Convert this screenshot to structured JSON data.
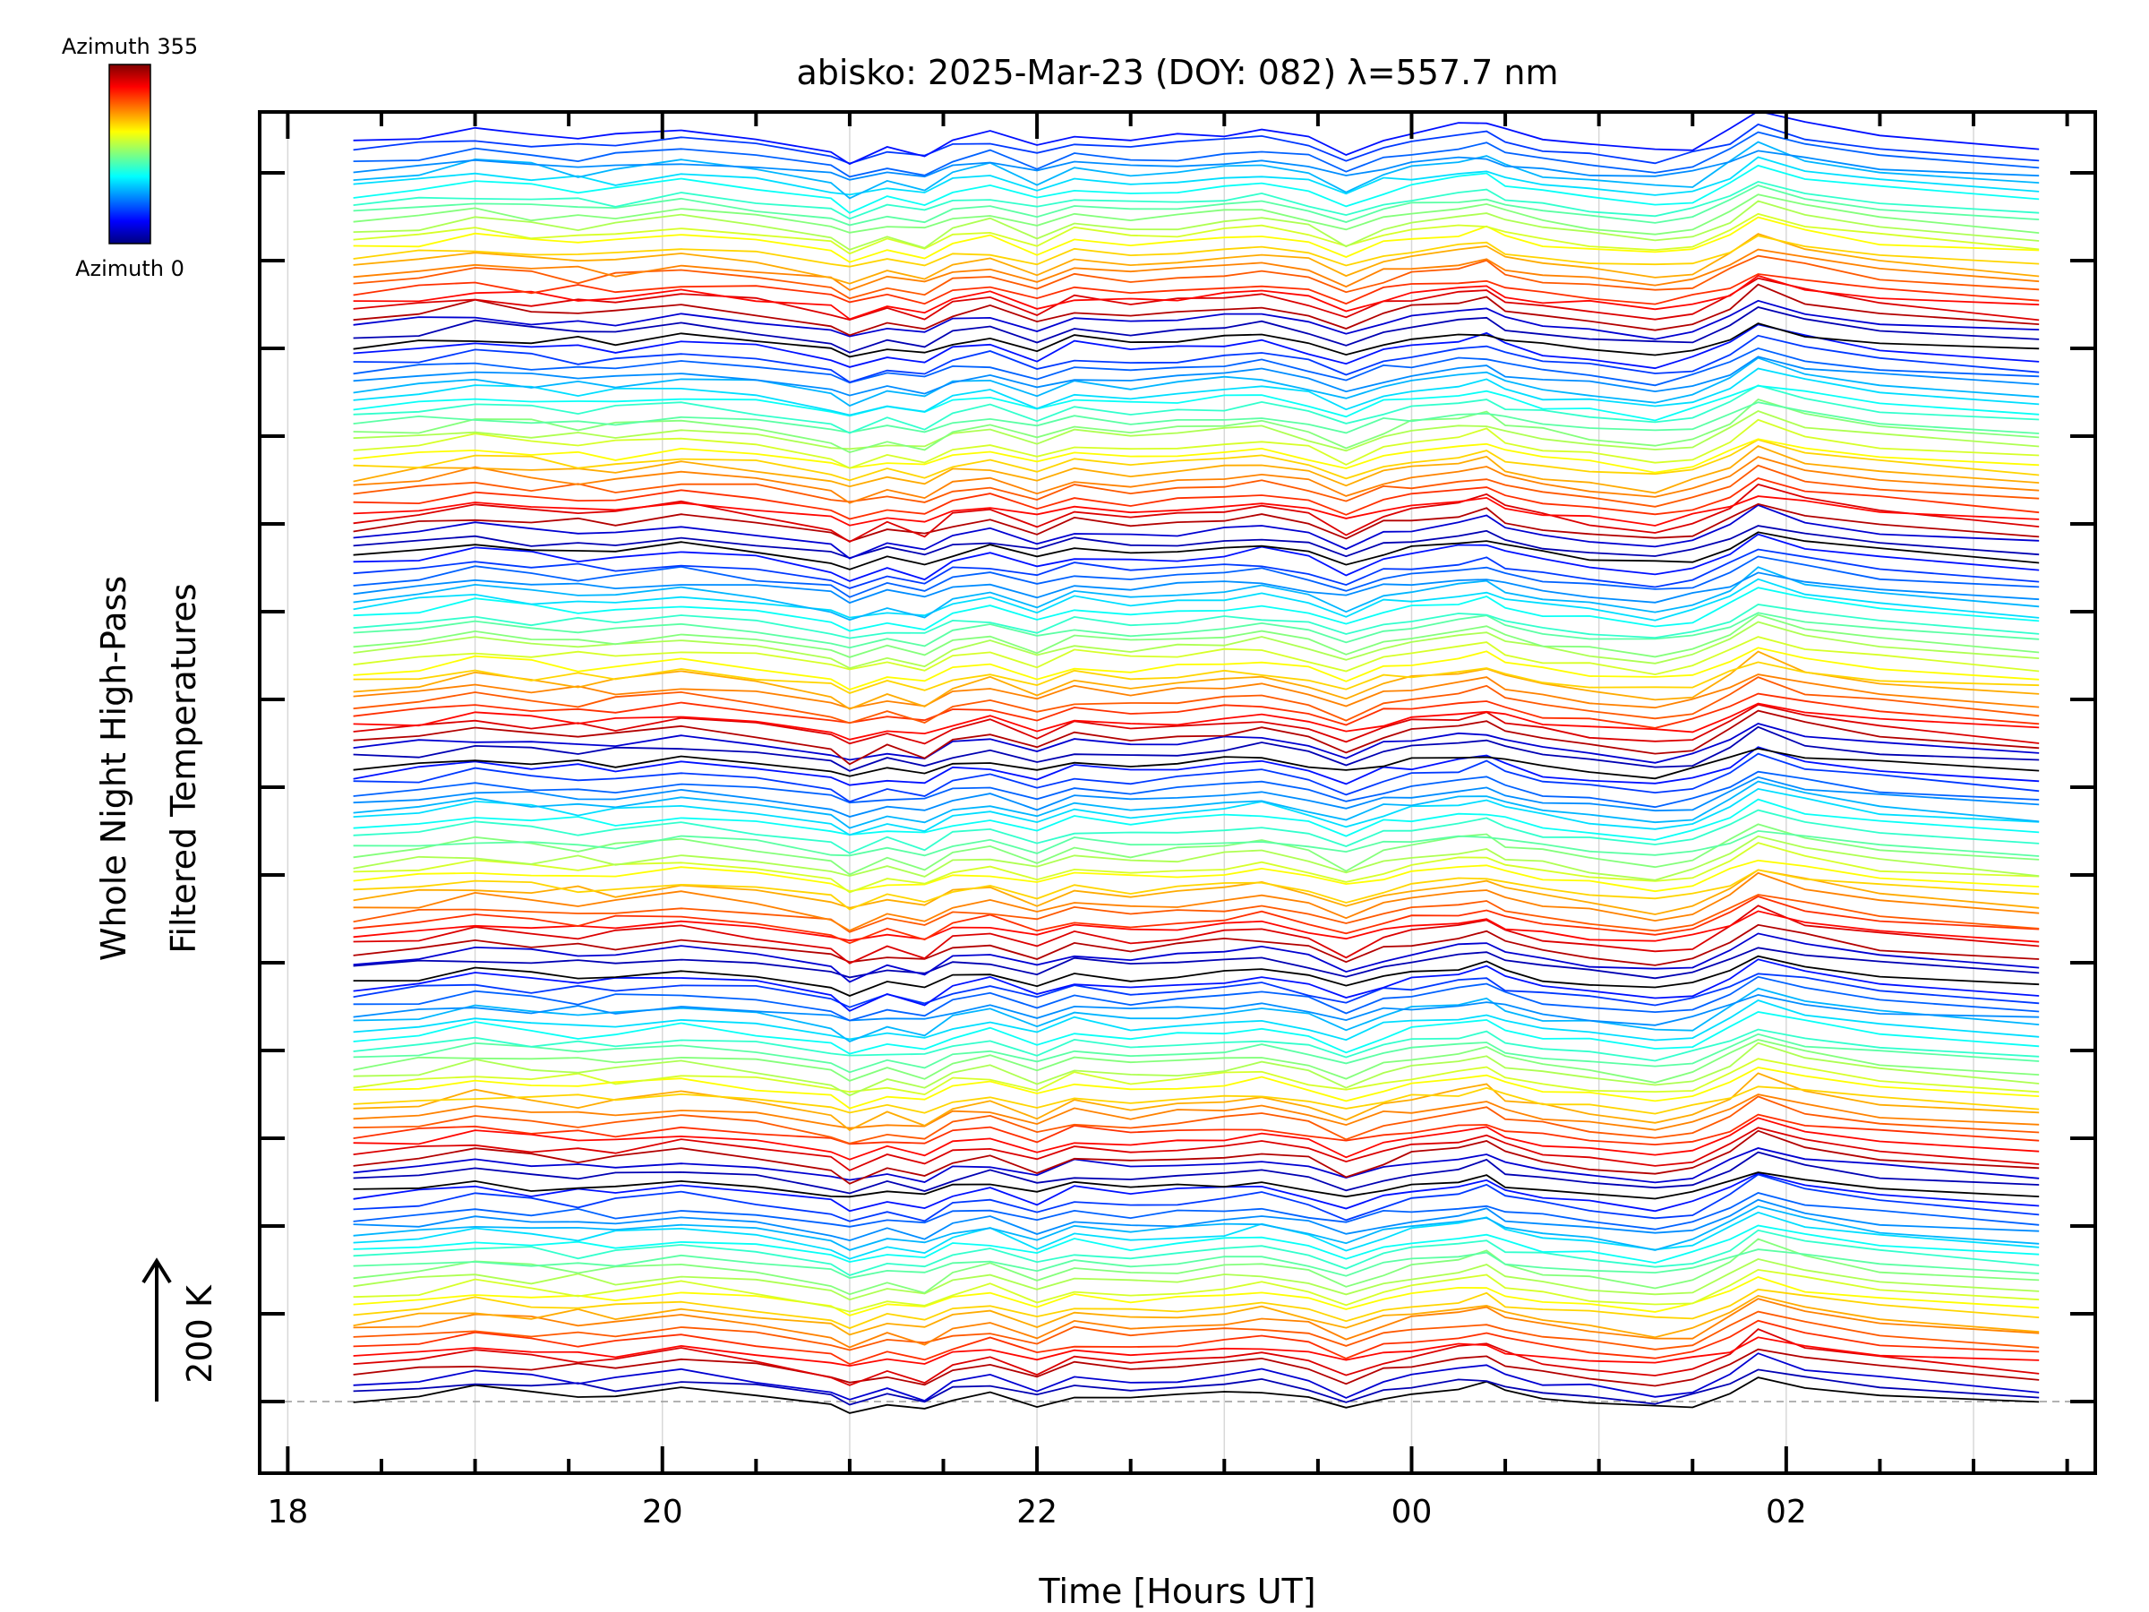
{
  "title": "abisko: 2025-Mar-23 (DOY: 082) λ=557.7 nm",
  "colorbar": {
    "top_label": "Azimuth 355",
    "bottom_label": "Azimuth 0",
    "colormap": "jet"
  },
  "scale_annotation": "200 K",
  "chart_data": {
    "type": "line",
    "title": "abisko: 2025-Mar-23 (DOY: 082) λ=557.7 nm",
    "xlabel": "Time [Hours UT]",
    "ylabel_lines": [
      "Whole Night High-Pass",
      "Filtered Temperatures"
    ],
    "x_tick_labels": [
      "18",
      "20",
      "22",
      "00",
      "02"
    ],
    "x_tick_hours": [
      18,
      20,
      22,
      24,
      26
    ],
    "xlim_hours": [
      17.85,
      27.65
    ],
    "x_data_range_hours": [
      18.35,
      27.35
    ],
    "y_ticks_count": 15,
    "grid": "vertical",
    "color_encoding": "azimuth (0 to 355)",
    "series_groups": 6,
    "series_per_group": 24,
    "baseline": "dashed gray reference line at lowest tick",
    "group_profiles": [
      {
        "hours": [
          18.35,
          18.7,
          19.0,
          19.3,
          19.55,
          19.75,
          20.1,
          20.5,
          20.9,
          21.0,
          21.2,
          21.4,
          21.55,
          21.75,
          22.0,
          22.2,
          22.5,
          22.75,
          23.0,
          23.2,
          23.45,
          23.65,
          23.85,
          24.0,
          24.25,
          24.4,
          24.5,
          24.7,
          24.95,
          25.3,
          25.5,
          25.7,
          25.85,
          26.1,
          26.5,
          27.35
        ],
        "values": [
          0.0,
          0.25,
          0.9,
          0.6,
          0.2,
          0.5,
          0.8,
          0.3,
          -0.4,
          -1.0,
          -0.2,
          -0.7,
          0.2,
          0.6,
          -0.3,
          0.4,
          0.1,
          0.3,
          0.5,
          0.8,
          0.3,
          -0.6,
          0.2,
          0.6,
          0.9,
          1.2,
          0.6,
          0.2,
          -0.1,
          -0.5,
          -0.3,
          0.7,
          1.8,
          1.0,
          0.4,
          -0.3
        ]
      },
      {
        "hours": [
          18.35,
          18.7,
          19.0,
          19.3,
          19.55,
          19.75,
          20.1,
          20.5,
          20.9,
          21.0,
          21.2,
          21.4,
          21.55,
          21.75,
          22.0,
          22.2,
          22.5,
          22.75,
          23.0,
          23.2,
          23.45,
          23.65,
          23.85,
          24.0,
          24.25,
          24.4,
          24.5,
          24.7,
          24.95,
          25.3,
          25.5,
          25.7,
          25.85,
          26.1,
          26.5,
          27.35
        ],
        "values": [
          0.0,
          0.4,
          0.6,
          0.3,
          0.5,
          0.2,
          0.7,
          0.4,
          -0.2,
          -0.6,
          -0.1,
          -0.4,
          0.3,
          0.5,
          -0.2,
          0.6,
          0.2,
          0.4,
          0.6,
          0.7,
          0.2,
          -0.4,
          0.3,
          0.5,
          0.8,
          1.0,
          0.5,
          0.1,
          -0.2,
          -0.6,
          -0.2,
          0.6,
          1.5,
          0.9,
          0.3,
          -0.4
        ]
      }
    ]
  }
}
